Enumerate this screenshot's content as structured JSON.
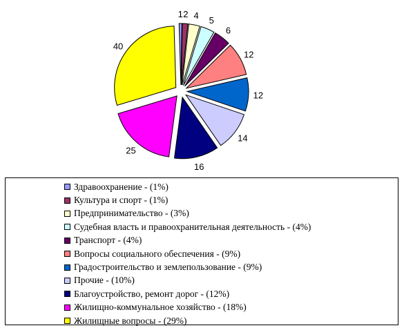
{
  "chart_data": {
    "type": "pie",
    "values": [
      1,
      2,
      4,
      5,
      6,
      12,
      12,
      14,
      16,
      25,
      40
    ],
    "data_labels": [
      "1",
      "2",
      "4",
      "5",
      "6",
      "12",
      "12",
      "14",
      "16",
      "25",
      "40"
    ],
    "colors": [
      "#9999ff",
      "#993366",
      "#ffffcc",
      "#ccffff",
      "#660066",
      "#ff8080",
      "#0066cc",
      "#ccccff",
      "#000080",
      "#ff00ff",
      "#ffff00"
    ],
    "legend_position": "bottom",
    "legend": [
      "Здравоохранение - (1%)",
      "Культура и спорт - (1%)",
      "Предпринимательство - (3%)",
      "Судебная власть и правоохранительная деятельность - (4%)",
      "Транспорт - (4%)",
      "Вопросы социального обеспечения - (9%)",
      "Градостроительство и землепользование - (9%)",
      "Прочие - (10%)",
      "Благоустройство, ремонт дорог - (12%)",
      "Жилищно-коммунальное хозяйство - (18%)",
      "Жилищные вопросы - (29%)"
    ]
  }
}
